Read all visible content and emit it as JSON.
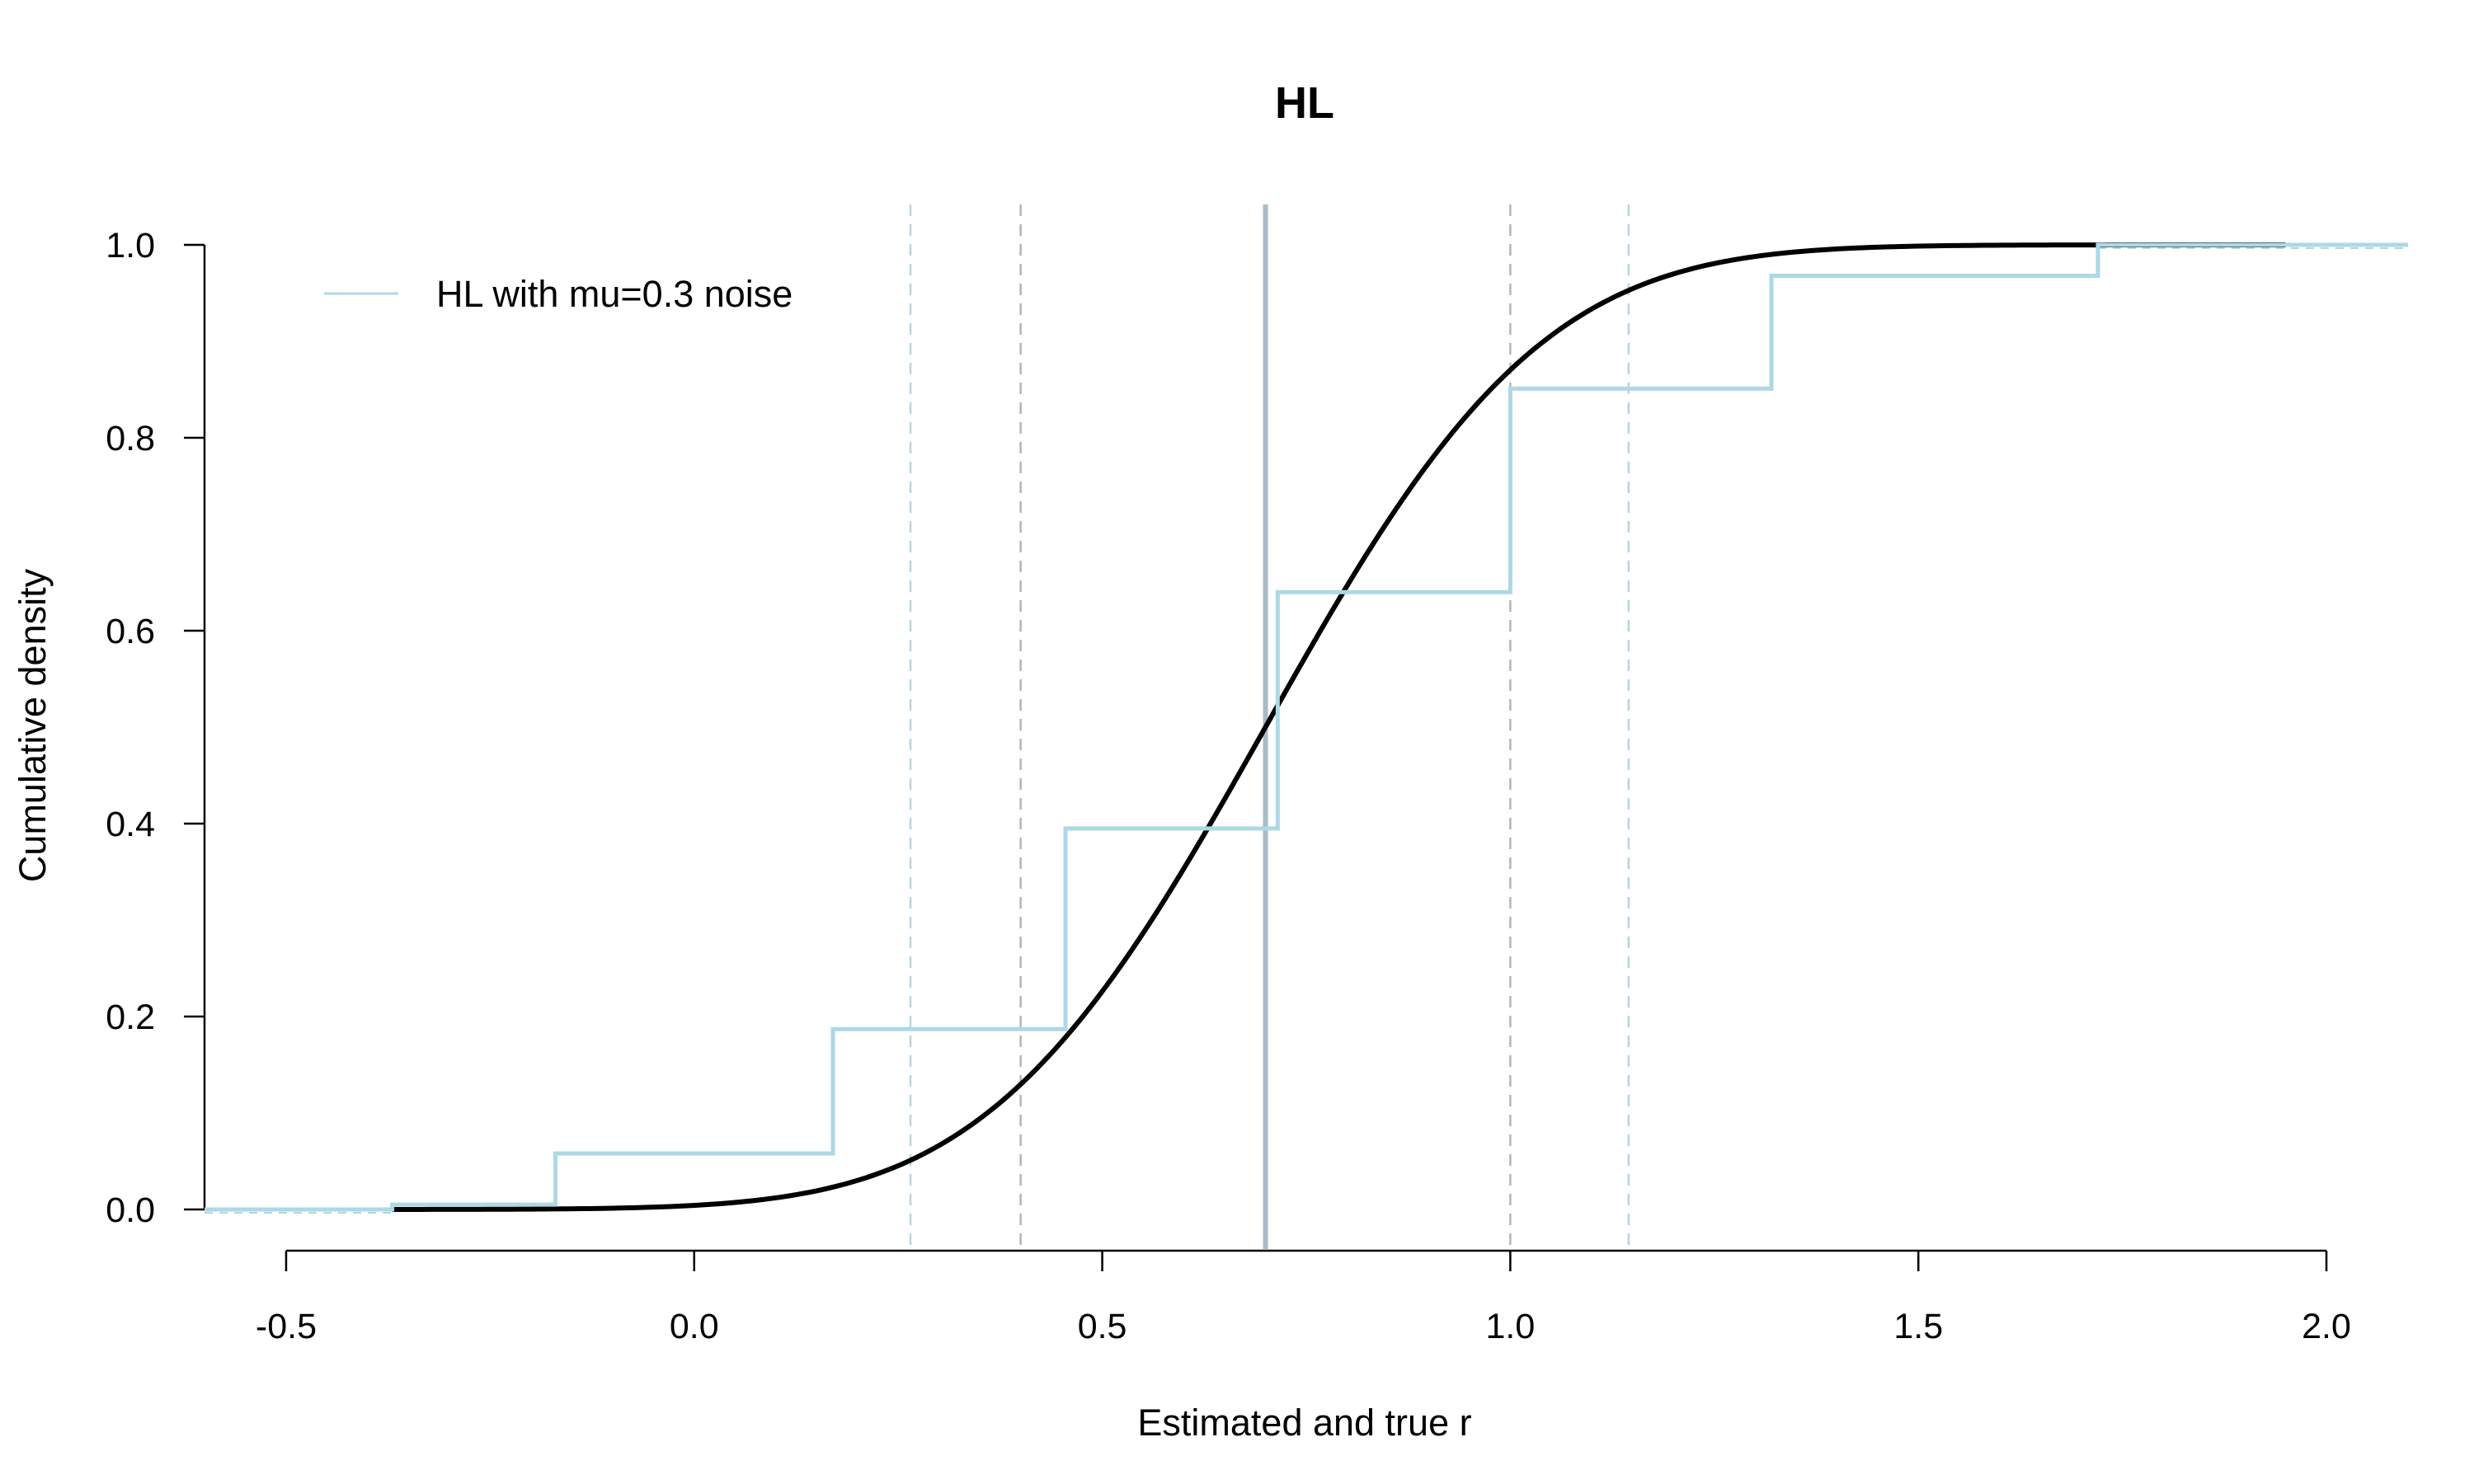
{
  "chart_data": {
    "type": "line",
    "title": "HL",
    "xlabel": "Estimated and true r",
    "ylabel": "Cumulative density",
    "xlim": [
      -0.6,
      2.1
    ],
    "ylim": [
      0,
      1.0
    ],
    "x_ticks": [
      "-0.5",
      "0.0",
      "0.5",
      "1.0",
      "1.5",
      "2.0"
    ],
    "x_tick_values": [
      -0.5,
      0.0,
      0.5,
      1.0,
      1.5,
      2.0
    ],
    "y_ticks": [
      "0.0",
      "0.2",
      "0.4",
      "0.6",
      "0.8",
      "1.0"
    ],
    "y_tick_values": [
      0.0,
      0.2,
      0.4,
      0.6,
      0.8,
      1.0
    ],
    "grid": false,
    "legend": {
      "placement": "top-left",
      "entries": [
        "HL with mu=0.3 noise"
      ]
    },
    "series": [
      {
        "name": "HL with mu=0.3 noise",
        "kind": "step",
        "color": "#add8e6",
        "x": [
          -0.6,
          -0.37,
          -0.17,
          0.17,
          0.455,
          0.715,
          1.0,
          1.32,
          1.72,
          2.1
        ],
        "y": [
          0.0,
          0.005,
          0.058,
          0.187,
          0.395,
          0.64,
          0.851,
          0.968,
          1.0,
          1.0
        ]
      }
    ],
    "true_cdf": {
      "kind": "normal_cdf",
      "color": "#000000",
      "mean": 0.7,
      "sd": 0.266,
      "x_range": [
        -0.37,
        1.95
      ]
    },
    "reference_lines": [
      {
        "x": 0.7,
        "style": "solid",
        "color": "#a9bcc6"
      },
      {
        "x": 0.4,
        "style": "dashed",
        "color": "#b4b4b4"
      },
      {
        "x": 1.0,
        "style": "dashed",
        "color": "#b4b4b4"
      },
      {
        "x": 0.265,
        "style": "dashed",
        "color": "#b8d4e0"
      },
      {
        "x": 1.145,
        "style": "dashed",
        "color": "#b8d4e0"
      }
    ]
  }
}
